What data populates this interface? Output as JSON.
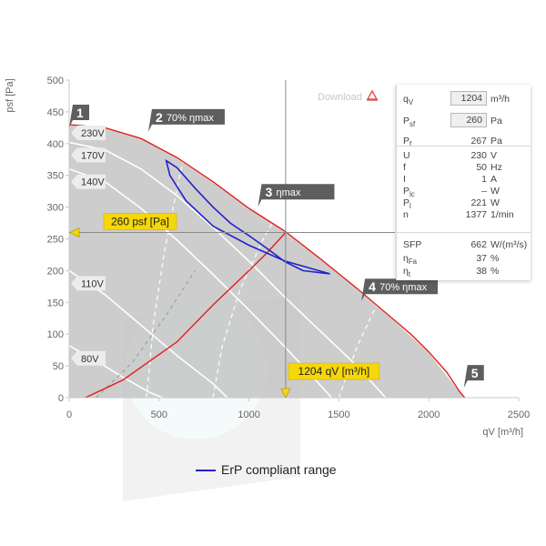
{
  "download": {
    "label": "Download",
    "icon": "pdf-icon"
  },
  "legend": {
    "erp_label": "ErP compliant range",
    "erp_color": "#2222cc"
  },
  "panel": {
    "rows_top": [
      {
        "sym": "q",
        "sub": "V",
        "value": "1204",
        "unit": "m³/h",
        "input": true
      },
      {
        "sym": "P",
        "sub": "sf",
        "value": "260",
        "unit": "Pa",
        "input": true
      },
      {
        "sym": "P",
        "sub": "f",
        "value": "267",
        "unit": "Pa",
        "input": false
      }
    ],
    "rows_mid": [
      {
        "sym": "U",
        "sub": "",
        "value": "230",
        "unit": "V"
      },
      {
        "sym": "f",
        "sub": "",
        "value": "50",
        "unit": "Hz"
      },
      {
        "sym": "I",
        "sub": "",
        "value": "1",
        "unit": "A"
      },
      {
        "sym": "P",
        "sub": "lc",
        "value": "–",
        "unit": "W"
      },
      {
        "sym": "P",
        "sub": "l",
        "value": "221",
        "unit": "W"
      },
      {
        "sym": "n",
        "sub": "",
        "value": "1377",
        "unit": "1/min"
      }
    ],
    "rows_bot": [
      {
        "sym": "SFP",
        "sub": "",
        "value": "662",
        "unit": "W/(m³/s)"
      },
      {
        "sym": "η",
        "sub": "Fa",
        "value": "37",
        "unit": "%"
      },
      {
        "sym": "η",
        "sub": "t",
        "value": "38",
        "unit": "%"
      }
    ]
  },
  "chart_data": {
    "type": "line",
    "xlabel": "qV [m³/h]",
    "ylabel": "psf [Pa]",
    "xlim": [
      0,
      2500
    ],
    "ylim": [
      0,
      500
    ],
    "xticks": [
      0,
      500,
      1000,
      1500,
      2000,
      2500
    ],
    "yticks": [
      0,
      50,
      100,
      150,
      200,
      250,
      300,
      350,
      400,
      450,
      500
    ],
    "grid": false,
    "colors": {
      "area": "#c4c4c4",
      "max_curve": "#e02020",
      "system": "#e02020",
      "erp": "#2222cc",
      "voltage": "#ffffff",
      "marker": "#f5d70a"
    },
    "area": [
      [
        0,
        430
      ],
      [
        200,
        425
      ],
      [
        400,
        408
      ],
      [
        600,
        378
      ],
      [
        800,
        340
      ],
      [
        1000,
        298
      ],
      [
        1200,
        262
      ],
      [
        1400,
        218
      ],
      [
        1600,
        172
      ],
      [
        1800,
        124
      ],
      [
        1900,
        100
      ],
      [
        2000,
        72
      ],
      [
        2100,
        40
      ],
      [
        2170,
        10
      ],
      [
        2200,
        0
      ],
      [
        0,
        0
      ]
    ],
    "max_curve": [
      [
        0,
        430
      ],
      [
        200,
        425
      ],
      [
        400,
        408
      ],
      [
        600,
        378
      ],
      [
        800,
        340
      ],
      [
        1000,
        298
      ],
      [
        1200,
        262
      ],
      [
        1400,
        218
      ],
      [
        1600,
        172
      ],
      [
        1800,
        124
      ],
      [
        1900,
        100
      ],
      [
        2000,
        72
      ],
      [
        2100,
        40
      ],
      [
        2170,
        10
      ],
      [
        2200,
        0
      ]
    ],
    "system_curve": [
      [
        90,
        0
      ],
      [
        300,
        28
      ],
      [
        600,
        88
      ],
      [
        800,
        146
      ],
      [
        1000,
        200
      ],
      [
        1100,
        228
      ],
      [
        1204,
        260
      ]
    ],
    "erp_range": [
      [
        540,
        373
      ],
      [
        600,
        362
      ],
      [
        700,
        330
      ],
      [
        800,
        300
      ],
      [
        900,
        274
      ],
      [
        1000,
        255
      ],
      [
        1100,
        235
      ],
      [
        1200,
        214
      ],
      [
        1300,
        200
      ],
      [
        1450,
        195
      ],
      [
        1200,
        215
      ],
      [
        1000,
        240
      ],
      [
        800,
        270
      ],
      [
        650,
        310
      ],
      [
        560,
        350
      ],
      [
        540,
        373
      ]
    ],
    "voltage_curves": [
      {
        "label": "230V",
        "points": [
          [
            0,
            430
          ],
          [
            200,
            425
          ],
          [
            400,
            408
          ],
          [
            600,
            378
          ],
          [
            800,
            340
          ],
          [
            1000,
            298
          ],
          [
            1200,
            262
          ],
          [
            1400,
            218
          ],
          [
            1600,
            172
          ],
          [
            1800,
            124
          ],
          [
            2000,
            72
          ],
          [
            2200,
            0
          ]
        ]
      },
      {
        "label": "170V",
        "points": [
          [
            0,
            402
          ],
          [
            200,
            390
          ],
          [
            400,
            360
          ],
          [
            600,
            318
          ],
          [
            800,
            268
          ],
          [
            1000,
            215
          ],
          [
            1200,
            158
          ],
          [
            1400,
            104
          ],
          [
            1600,
            50
          ],
          [
            1760,
            0
          ]
        ]
      },
      {
        "label": "140V",
        "points": [
          [
            0,
            360
          ],
          [
            200,
            340
          ],
          [
            400,
            298
          ],
          [
            600,
            248
          ],
          [
            800,
            194
          ],
          [
            1000,
            138
          ],
          [
            1200,
            80
          ],
          [
            1350,
            34
          ],
          [
            1460,
            0
          ]
        ]
      },
      {
        "label": "110V",
        "points": [
          [
            0,
            200
          ],
          [
            200,
            162
          ],
          [
            400,
            114
          ],
          [
            600,
            66
          ],
          [
            800,
            22
          ],
          [
            880,
            0
          ]
        ]
      },
      {
        "label": "80V",
        "points": [
          [
            0,
            82
          ],
          [
            150,
            58
          ],
          [
            300,
            32
          ],
          [
            450,
            8
          ],
          [
            520,
            0
          ]
        ]
      }
    ],
    "efficiency_lines": [
      {
        "label": "70% ηmax",
        "points": [
          [
            430,
            0
          ],
          [
            470,
            120
          ],
          [
            530,
            230
          ],
          [
            600,
            330
          ],
          [
            670,
            420
          ]
        ]
      },
      {
        "label": "ηmax",
        "points": [
          [
            800,
            0
          ],
          [
            850,
            80
          ],
          [
            950,
            170
          ],
          [
            1080,
            250
          ],
          [
            1160,
            290
          ],
          [
            1260,
            330
          ]
        ]
      },
      {
        "label": "70% ηmax",
        "points": [
          [
            1500,
            0
          ],
          [
            1600,
            80
          ],
          [
            1700,
            140
          ],
          [
            1800,
            180
          ],
          [
            1900,
            210
          ]
        ]
      }
    ],
    "point_labels": [
      {
        "num": "1",
        "text": "",
        "at": [
          0,
          437
        ]
      },
      {
        "num": "2",
        "text": "70% ηmax",
        "at": [
          440,
          430
        ]
      },
      {
        "num": "3",
        "text": "ηmax",
        "at": [
          1050,
          312
        ]
      },
      {
        "num": "4",
        "text": "70% ηmax",
        "at": [
          1625,
          163
        ]
      },
      {
        "num": "5",
        "text": "",
        "at": [
          2195,
          27
        ]
      }
    ],
    "operating_point": {
      "qv": 1204,
      "psf": 260,
      "qv_label": "1204 qV [m³/h]",
      "psf_label": "260 psf [Pa]"
    }
  }
}
